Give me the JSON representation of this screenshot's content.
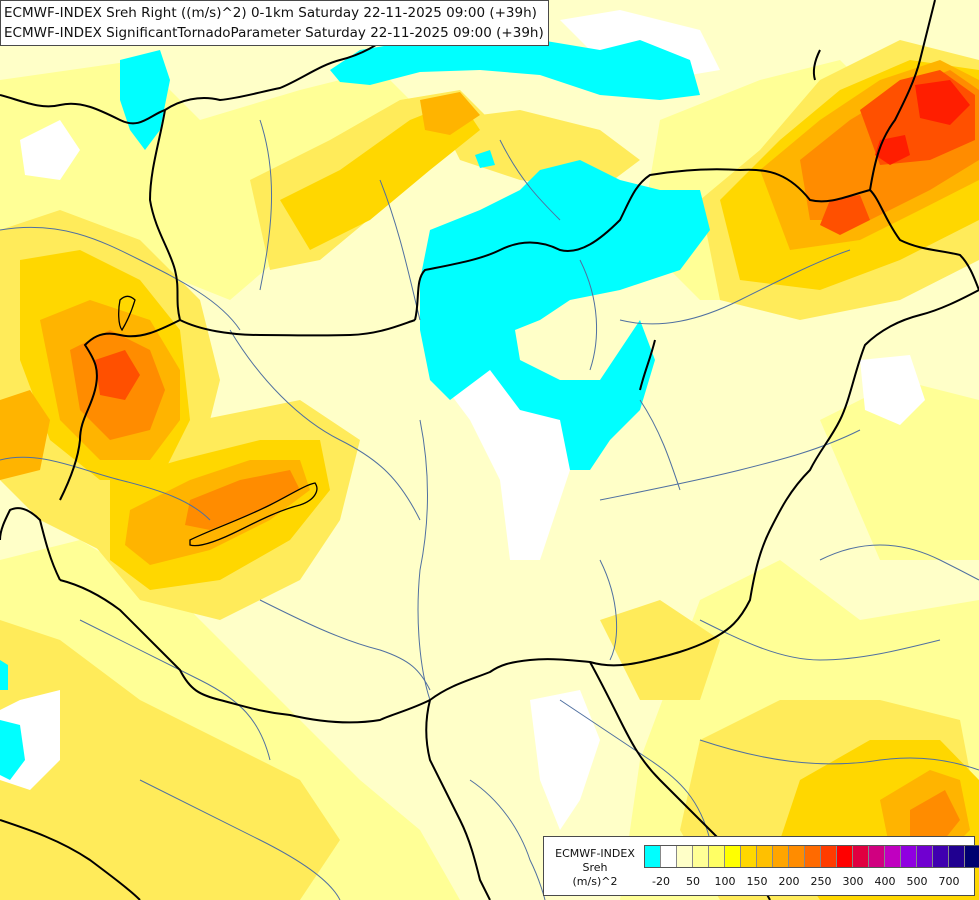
{
  "titles": {
    "line1": "ECMWF-INDEX Sreh Right ((m/s)^2) 0-1km Saturday 22-11-2025 09:00 (+39h)",
    "line2": "ECMWF-INDEX SignificantTornadoParameter Saturday 22-11-2025 09:00 (+39h)"
  },
  "legend": {
    "label_line1": "ECMWF-INDEX",
    "label_line2": "Sreh",
    "label_line3": "(m/s)^2",
    "colors": [
      "#00ffff",
      "#ffffff",
      "#ffffc8",
      "#ffff96",
      "#ffff64",
      "#ffff00",
      "#ffd700",
      "#ffc000",
      "#ffa500",
      "#ff8c00",
      "#ff6a00",
      "#ff3c00",
      "#ff0000",
      "#e00040",
      "#d00080",
      "#c000c0",
      "#9000e0",
      "#7000d0",
      "#4000b0",
      "#200090",
      "#000070"
    ],
    "ticks": [
      "-20",
      "50",
      "100",
      "150",
      "200",
      "250",
      "300",
      "400",
      "500",
      "700"
    ]
  },
  "palette": {
    "land_base": "#ffffc8",
    "yellow_light": "#ffff96",
    "yellow": "#ffeb5a",
    "yellow_deep": "#ffd700",
    "orange_light": "#ffc000",
    "orange": "#ffa500",
    "orange_deep": "#ff8c00",
    "red_orange": "#ff6a00",
    "red": "#ff2a00",
    "cyan": "#00ffff",
    "white": "#ffffff",
    "country_border": "#000000",
    "region_border": "#5070a0"
  }
}
